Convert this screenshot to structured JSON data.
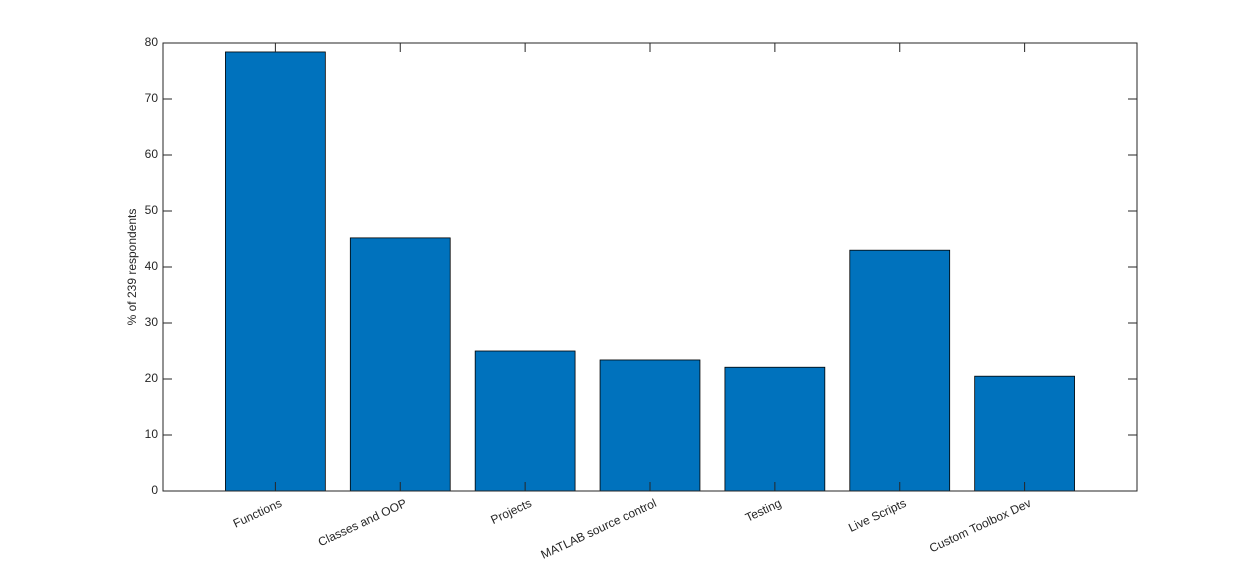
{
  "chart_data": {
    "type": "bar",
    "ylabel": "% of 239 respondents",
    "categories": [
      "Functions",
      "Classes and OOP",
      "Projects",
      "MATLAB source control",
      "Testing",
      "Live Scripts",
      "Custom Toolbox Dev"
    ],
    "values": [
      78.4,
      45.2,
      25.0,
      23.4,
      22.1,
      43.0,
      20.5
    ],
    "color": "#0072bd",
    "ylim": [
      0,
      80
    ],
    "yticks": [
      0,
      10,
      20,
      30,
      40,
      50,
      60,
      70,
      80
    ],
    "grid": false
  }
}
